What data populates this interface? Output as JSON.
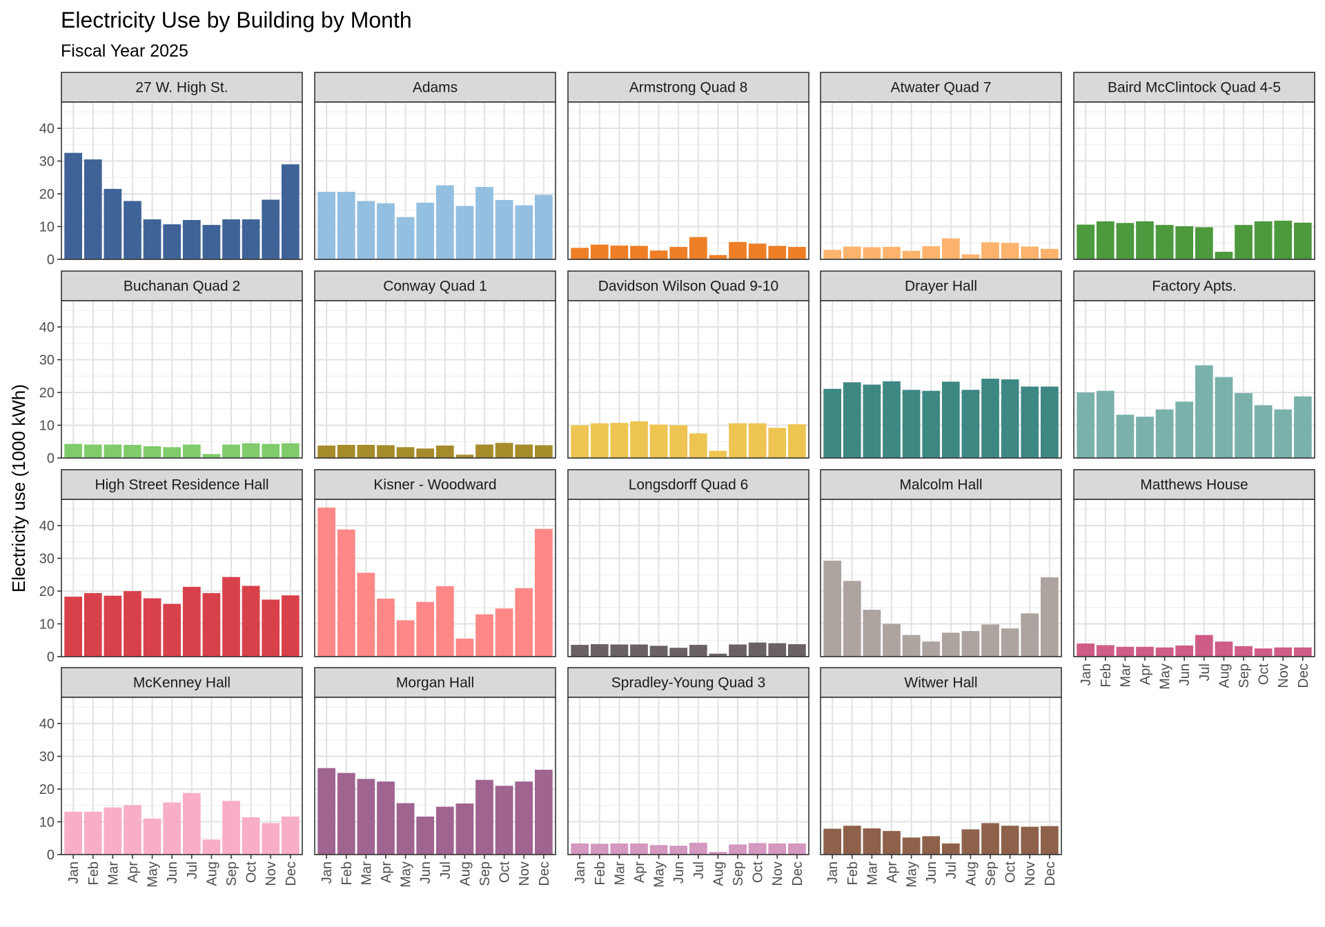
{
  "chart_data": {
    "type": "bar",
    "title": "Electricity Use by Building by Month",
    "subtitle": "Fiscal Year 2025",
    "ylabel": "Electricity use (1000 kWh)",
    "xlabel": "",
    "ylim": [
      0,
      48
    ],
    "yticks": [
      0,
      10,
      20,
      30,
      40
    ],
    "grid": true,
    "legend": "none",
    "categories": [
      "Jan",
      "Feb",
      "Mar",
      "Apr",
      "May",
      "Jun",
      "Jul",
      "Aug",
      "Sep",
      "Oct",
      "Nov",
      "Dec"
    ],
    "facets": [
      {
        "name": "27 W. High St.",
        "color": "#3F6397",
        "values": [
          32.5,
          30.5,
          21.5,
          17.8,
          12.2,
          10.7,
          12.0,
          10.5,
          12.2,
          12.2,
          18.2,
          29.0
        ]
      },
      {
        "name": "Adams",
        "color": "#93BFE1",
        "values": [
          20.6,
          20.6,
          17.8,
          17.1,
          12.9,
          17.3,
          22.6,
          16.3,
          22.1,
          18.1,
          16.5,
          19.7
        ]
      },
      {
        "name": "Armstrong Quad 8",
        "color": "#EE7F26",
        "values": [
          3.5,
          4.5,
          4.2,
          4.1,
          2.7,
          3.8,
          6.8,
          1.3,
          5.3,
          4.8,
          4.1,
          3.8
        ]
      },
      {
        "name": "Atwater Quad 7",
        "color": "#FCB36D",
        "values": [
          2.9,
          3.9,
          3.7,
          3.8,
          2.6,
          4.0,
          6.4,
          1.5,
          5.2,
          5.0,
          3.9,
          3.2
        ]
      },
      {
        "name": "Baird McClintock Quad 4-5",
        "color": "#4D9A3E",
        "values": [
          10.6,
          11.6,
          11.1,
          11.6,
          10.5,
          10.1,
          9.8,
          2.3,
          10.5,
          11.6,
          11.8,
          11.2
        ]
      },
      {
        "name": "Buchanan Quad 2",
        "color": "#80CC6C",
        "values": [
          4.3,
          4.1,
          4.1,
          4.0,
          3.6,
          3.3,
          4.1,
          1.2,
          4.1,
          4.5,
          4.3,
          4.5
        ]
      },
      {
        "name": "Conway Quad 1",
        "color": "#A68B2A",
        "values": [
          3.8,
          4.0,
          4.0,
          3.9,
          3.3,
          2.9,
          3.8,
          1.0,
          4.1,
          4.6,
          4.1,
          3.9
        ]
      },
      {
        "name": "Davidson Wilson Quad 9-10",
        "color": "#EEC552",
        "values": [
          10.0,
          10.6,
          10.7,
          11.2,
          10.2,
          10.0,
          7.5,
          2.2,
          10.6,
          10.6,
          9.2,
          10.3
        ]
      },
      {
        "name": "Drayer Hall",
        "color": "#3E8884",
        "values": [
          21.1,
          23.1,
          22.4,
          23.4,
          20.8,
          20.5,
          23.3,
          20.8,
          24.2,
          24.0,
          21.8,
          21.8
        ]
      },
      {
        "name": "Factory Apts.",
        "color": "#7AB1AB",
        "values": [
          20.0,
          20.5,
          13.2,
          12.6,
          14.8,
          17.2,
          28.3,
          24.7,
          19.8,
          16.1,
          14.8,
          18.8
        ]
      },
      {
        "name": "High Street Residence Hall",
        "color": "#D9414A",
        "values": [
          18.3,
          19.4,
          18.6,
          20.0,
          17.8,
          16.1,
          21.3,
          19.4,
          24.3,
          21.6,
          17.4,
          18.7
        ]
      },
      {
        "name": "Kisner - Woodward",
        "color": "#FD8887",
        "values": [
          45.5,
          38.8,
          25.6,
          17.7,
          11.1,
          16.7,
          21.5,
          5.5,
          12.9,
          14.7,
          20.9,
          39.0
        ]
      },
      {
        "name": "Longsdorff Quad 6",
        "color": "#6A6262",
        "values": [
          3.6,
          3.8,
          3.7,
          3.7,
          3.3,
          2.7,
          3.6,
          0.9,
          3.7,
          4.3,
          4.1,
          3.8
        ]
      },
      {
        "name": "Malcolm Hall",
        "color": "#ADA39F",
        "values": [
          29.3,
          23.1,
          14.3,
          10.0,
          6.6,
          4.6,
          7.3,
          7.8,
          9.8,
          8.6,
          13.2,
          24.2
        ]
      },
      {
        "name": "Matthews House",
        "color": "#CF5C87",
        "values": [
          4.0,
          3.5,
          3.0,
          3.0,
          2.8,
          3.4,
          6.6,
          4.6,
          3.2,
          2.5,
          2.8,
          2.8
        ]
      },
      {
        "name": "McKenney Hall",
        "color": "#F8AEC7",
        "values": [
          13.1,
          13.1,
          14.4,
          15.1,
          11.0,
          15.9,
          18.8,
          4.6,
          16.4,
          11.4,
          9.6,
          11.6
        ]
      },
      {
        "name": "Morgan Hall",
        "color": "#A06491",
        "values": [
          26.4,
          24.9,
          23.1,
          22.3,
          15.7,
          11.6,
          14.6,
          15.6,
          22.8,
          21.0,
          22.3,
          25.9
        ]
      },
      {
        "name": "Spradley-Young  Quad 3",
        "color": "#D397C0",
        "values": [
          3.4,
          3.3,
          3.4,
          3.4,
          2.9,
          2.7,
          3.6,
          0.8,
          3.1,
          3.5,
          3.4,
          3.4
        ]
      },
      {
        "name": "Witwer Hall",
        "color": "#8E624A",
        "values": [
          7.9,
          8.8,
          8.0,
          7.2,
          5.2,
          5.6,
          3.4,
          7.7,
          9.6,
          8.8,
          8.5,
          8.7
        ]
      }
    ]
  }
}
